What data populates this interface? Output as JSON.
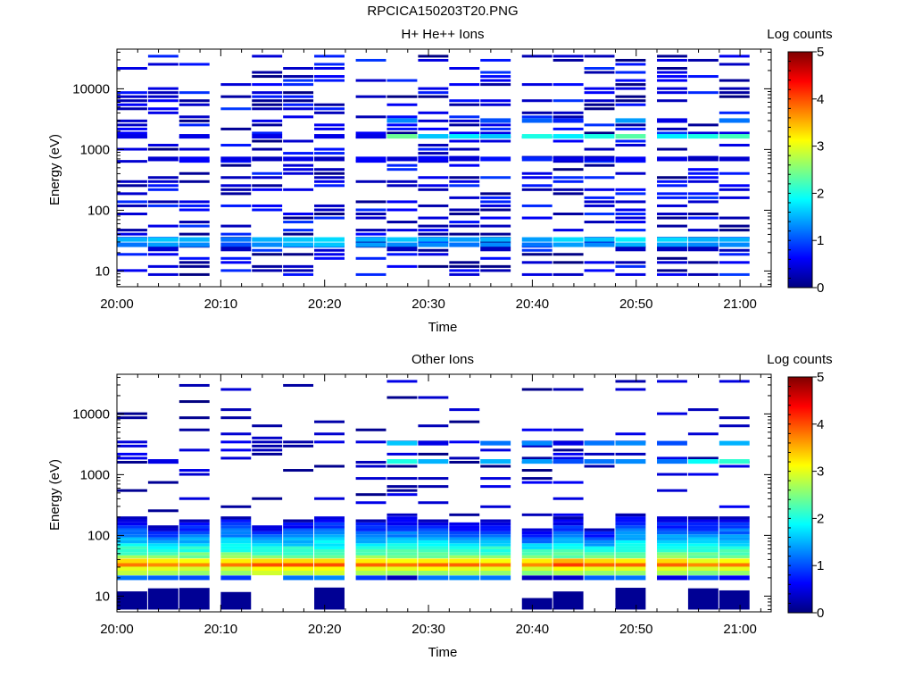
{
  "figure": {
    "title": "RPCICA150203T20.PNG"
  },
  "chart_data": [
    {
      "type": "heatmap",
      "title": "H+ He++ Ions",
      "xlabel": "Time",
      "ylabel": "Energy (eV)",
      "x_ticks": [
        "20:00",
        "20:10",
        "20:20",
        "20:30",
        "20:40",
        "20:50",
        "21:00"
      ],
      "xlim": [
        "20:00",
        "21:03"
      ],
      "y_scale": "log",
      "ylim": [
        5.5,
        45000
      ],
      "y_ticks": [
        10,
        100,
        1000,
        10000
      ],
      "y_tick_labels": [
        "10",
        "100",
        "1000",
        "10000"
      ],
      "colorbar": {
        "label": "Log counts",
        "range": [
          0,
          5
        ],
        "ticks": [
          "0",
          "1",
          "2",
          "3",
          "4",
          "5"
        ],
        "colormap": "jet"
      },
      "time_bins": [
        "20:00",
        "20:03",
        "20:06",
        "20:10",
        "20:13",
        "20:16",
        "20:19",
        "20:23",
        "20:26",
        "20:29",
        "20:32",
        "20:35",
        "20:39",
        "20:42",
        "20:45",
        "20:48",
        "20:52",
        "20:55",
        "20:58"
      ],
      "energy_bands": [
        {
          "energy_ev": 33,
          "log_counts": [
            1.5,
            1.6,
            1.5,
            1.2,
            1.5,
            1.6,
            1.7,
            1.5,
            1.6,
            1.5,
            1.4,
            1.5,
            1.4,
            1.7,
            1.6,
            1.8,
            1.7,
            1.5,
            1.5
          ]
        },
        {
          "energy_ev": 27,
          "log_counts": [
            1.2,
            1.4,
            1.3,
            1.0,
            1.3,
            1.5,
            1.6,
            1.4,
            1.3,
            1.3,
            1.2,
            1.3,
            1.2,
            1.4,
            1.3,
            1.5,
            1.4,
            1.3,
            1.3
          ]
        },
        {
          "energy_ev": 23,
          "log_counts": [
            0.0,
            0.4,
            0.0,
            0.3,
            0.0,
            0.0,
            0.0,
            0.0,
            0.3,
            0.0,
            0.0,
            0.3,
            0.0,
            0.0,
            0.0,
            0.3,
            0.3,
            0.3,
            0.0
          ]
        },
        {
          "energy_ev": 1650,
          "log_counts": [
            0.5,
            0.0,
            0.5,
            0.0,
            0.5,
            0.0,
            0.5,
            0.5,
            2.4,
            1.6,
            1.8,
            1.6,
            2.0,
            1.8,
            2.0,
            2.3,
            1.8,
            2.0,
            2.2
          ]
        },
        {
          "energy_ev": 3000,
          "log_counts": [
            0.0,
            0.0,
            0.0,
            0.0,
            0.0,
            0.0,
            0.0,
            0.0,
            1.3,
            0.0,
            0.0,
            1.0,
            1.1,
            0.8,
            0.0,
            1.4,
            0.5,
            0.0,
            1.2
          ]
        },
        {
          "energy_ev": 700,
          "log_counts": [
            0.0,
            0.4,
            0.6,
            0.5,
            0.3,
            0.5,
            0.3,
            0.6,
            0.4,
            0.6,
            0.4,
            0.7,
            0.8,
            0.5,
            0.5,
            0.6,
            0.5,
            0.3,
            0.4
          ]
        }
      ],
      "sparse_counts": "scattered low counts (log 0–1) across 10 eV – 40 keV"
    },
    {
      "type": "heatmap",
      "title": "Other Ions",
      "xlabel": "Time",
      "ylabel": "Energy (eV)",
      "x_ticks": [
        "20:00",
        "20:10",
        "20:20",
        "20:30",
        "20:40",
        "20:50",
        "21:00"
      ],
      "xlim": [
        "20:00",
        "21:03"
      ],
      "y_scale": "log",
      "ylim": [
        5.5,
        45000
      ],
      "y_ticks": [
        10,
        100,
        1000,
        10000
      ],
      "y_tick_labels": [
        "10",
        "100",
        "1000",
        "10000"
      ],
      "colorbar": {
        "label": "Log counts",
        "range": [
          0,
          5
        ],
        "ticks": [
          "0",
          "1",
          "2",
          "3",
          "4",
          "5"
        ],
        "colormap": "jet"
      },
      "time_bins": [
        "20:00",
        "20:03",
        "20:06",
        "20:10",
        "20:13",
        "20:16",
        "20:19",
        "20:23",
        "20:26",
        "20:29",
        "20:32",
        "20:35",
        "20:39",
        "20:42",
        "20:45",
        "20:48",
        "20:52",
        "20:55",
        "20:58"
      ],
      "energy_bands": [
        {
          "energy_ev": 33,
          "log_counts": [
            3.8,
            3.7,
            3.7,
            3.8,
            4.0,
            4.0,
            4.0,
            3.9,
            3.8,
            3.9,
            3.9,
            3.8,
            3.7,
            4.1,
            3.9,
            3.9,
            3.9,
            3.7,
            3.8
          ]
        },
        {
          "energy_ev": 38,
          "log_counts": [
            3.3,
            3.2,
            3.1,
            3.2,
            3.3,
            3.3,
            3.3,
            3.2,
            3.1,
            3.2,
            3.2,
            3.1,
            3.2,
            3.5,
            3.3,
            3.2,
            3.3,
            3.0,
            3.1
          ]
        },
        {
          "energy_ev": 28,
          "log_counts": [
            3.0,
            3.0,
            2.9,
            2.9,
            3.1,
            3.1,
            3.1,
            3.0,
            3.0,
            3.1,
            3.0,
            3.0,
            2.9,
            3.1,
            3.0,
            3.0,
            3.0,
            2.9,
            3.0
          ]
        },
        {
          "energy_ev": 24,
          "log_counts": [
            2.8,
            2.7,
            2.6,
            2.6,
            2.9,
            2.8,
            2.9,
            2.7,
            2.6,
            2.6,
            2.7,
            2.6,
            2.5,
            2.7,
            2.6,
            2.6,
            2.7,
            2.5,
            2.6
          ]
        },
        {
          "energy_ev": 20,
          "log_counts": [
            1.2,
            1.1,
            1.0,
            0.9,
            0.0,
            1.2,
            1.3,
            0.9,
            0.3,
            1.2,
            1.3,
            1.2,
            0.3,
            0.4,
            1.1,
            1.2,
            0.5,
            1.0,
            0.6
          ]
        },
        {
          "energy_ev": 1650,
          "log_counts": [
            0.0,
            0.5,
            0.0,
            0.0,
            0.0,
            0.0,
            0.0,
            0.0,
            2.0,
            1.5,
            0.0,
            1.5,
            1.4,
            1.0,
            1.2,
            1.3,
            1.2,
            1.9,
            2.1
          ]
        },
        {
          "energy_ev": 3300,
          "log_counts": [
            0.0,
            0.0,
            0.0,
            0.0,
            0.0,
            0.0,
            0.0,
            0.0,
            1.6,
            0.5,
            0.0,
            1.2,
            1.3,
            0.5,
            1.2,
            1.3,
            1.0,
            0.0,
            1.5
          ]
        }
      ],
      "low_energy_counts": "broad band of log counts 1–2.5 from 40 eV to 200 eV; low counts below 15 eV"
    }
  ]
}
